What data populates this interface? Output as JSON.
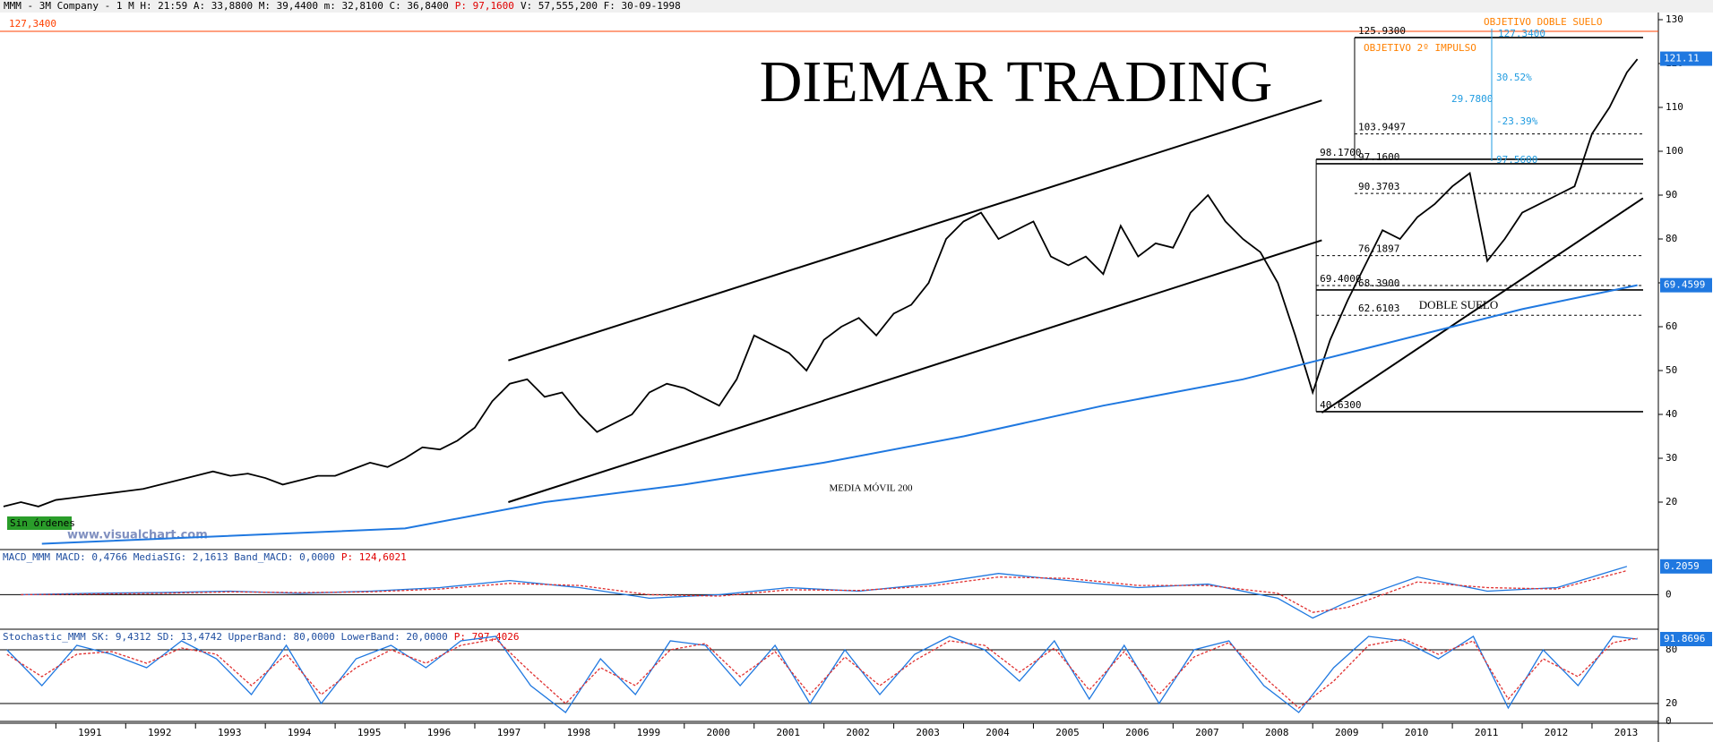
{
  "chart_data": {
    "type": "line",
    "header": "MMM - 3M Company -  1 M H: 21:59 A: 33,8800 M: 39,4400 m: 32,8100 C: 36,8400",
    "header_price": "P: 97,1600",
    "header_tail": "V: 57,555,200 F: 30-09-1998",
    "title": "DIEMAR TRADING",
    "watermark": "www.visualchart.com",
    "status": "Sin órdenes",
    "xlim": [
      1990.2,
      2013.95
    ],
    "xticks": [
      1991,
      1992,
      1993,
      1994,
      1995,
      1996,
      1997,
      1998,
      1999,
      2000,
      2001,
      2002,
      2003,
      2004,
      2005,
      2006,
      2007,
      2008,
      2009,
      2010,
      2011,
      2012,
      2013
    ],
    "ylim": [
      10,
      130
    ],
    "yticks": [
      20,
      30,
      40,
      50,
      60,
      70,
      80,
      90,
      100,
      110,
      120,
      130
    ],
    "series": [
      {
        "name": "MMM",
        "color": "#000000",
        "last_label": "121.11",
        "last_value": 121.11,
        "x": [
          1990.25,
          1990.5,
          1990.75,
          1991,
          1991.25,
          1991.5,
          1991.75,
          1992,
          1992.25,
          1992.5,
          1992.75,
          1993,
          1993.25,
          1993.5,
          1993.75,
          1994,
          1994.25,
          1994.5,
          1994.75,
          1995,
          1995.25,
          1995.5,
          1995.75,
          1996,
          1996.25,
          1996.5,
          1996.75,
          1997,
          1997.25,
          1997.5,
          1997.75,
          1998,
          1998.25,
          1998.5,
          1998.75,
          1999,
          1999.25,
          1999.5,
          1999.75,
          2000,
          2000.25,
          2000.5,
          2000.75,
          2001,
          2001.25,
          2001.5,
          2001.75,
          2002,
          2002.25,
          2002.5,
          2002.75,
          2003,
          2003.25,
          2003.5,
          2003.75,
          2004,
          2004.25,
          2004.5,
          2004.75,
          2005,
          2005.25,
          2005.5,
          2005.75,
          2006,
          2006.25,
          2006.5,
          2006.75,
          2007,
          2007.25,
          2007.5,
          2007.75,
          2008,
          2008.25,
          2008.5,
          2008.75,
          2009,
          2009.25,
          2009.5,
          2009.75,
          2010,
          2010.25,
          2010.5,
          2010.75,
          2011,
          2011.25,
          2011.5,
          2011.75,
          2012,
          2012.25,
          2012.5,
          2012.75,
          2013,
          2013.25,
          2013.5,
          2013.65
        ],
        "values": [
          19,
          20,
          19,
          20.5,
          21,
          21.5,
          22,
          22.5,
          23,
          24,
          25,
          26,
          27,
          26,
          26.5,
          25.5,
          24,
          25,
          26,
          26,
          27.5,
          29,
          28,
          30,
          32.5,
          32,
          34,
          37,
          43,
          47,
          48,
          44,
          45,
          40,
          36,
          38,
          40,
          45,
          47,
          46,
          44,
          42,
          48,
          58,
          56,
          54,
          50,
          57,
          60,
          62,
          58,
          63,
          65,
          70,
          80,
          84,
          86,
          80,
          82,
          84,
          76,
          74,
          76,
          72,
          83,
          76,
          79,
          78,
          86,
          90,
          84,
          80,
          77,
          70,
          58,
          45,
          57,
          66,
          74,
          82,
          80,
          85,
          88,
          92,
          95,
          75,
          80,
          86,
          88,
          90,
          92,
          104,
          110,
          118,
          121
        ]
      },
      {
        "name": "MEDIA MÓVIL 200",
        "color": "#1f78e0",
        "last_label": "69.4599",
        "last_value": 69.4599,
        "x": [
          1990.8,
          1996,
          1998,
          2000,
          2002,
          2004,
          2006,
          2008,
          2009,
          2010,
          2011,
          2012,
          2013.65
        ],
        "values": [
          10.5,
          14,
          20,
          24,
          29,
          35,
          42,
          48,
          52,
          56,
          60,
          64,
          69.4599
        ]
      }
    ],
    "resistance": {
      "value": 127.34,
      "label": "127,3400",
      "color": "#ff4000"
    },
    "levels": [
      {
        "value": 125.93,
        "label": "125.9300"
      },
      {
        "value": 103.9497,
        "label": "103.9497"
      },
      {
        "value": 98.17,
        "label": "98.1700"
      },
      {
        "value": 97.16,
        "label": "97.1600"
      },
      {
        "value": 90.3703,
        "label": "90.3703"
      },
      {
        "value": 76.1897,
        "label": "76.1897"
      },
      {
        "value": 69.4,
        "label": "69.4000"
      },
      {
        "value": 68.39,
        "label": "68.3900"
      },
      {
        "value": 62.6103,
        "label": "62.6103"
      },
      {
        "value": 40.63,
        "label": "40.6300"
      }
    ],
    "trend_lines": [
      {
        "x": [
          1997.48,
          2009.13
        ],
        "y": [
          52.3,
          111.6
        ]
      },
      {
        "x": [
          1997.48,
          2009.13
        ],
        "y": [
          20,
          79.7
        ]
      },
      {
        "x": [
          2009.13,
          2013.73
        ],
        "y": [
          40.4,
          89.3
        ]
      }
    ],
    "annotations": {
      "ma": "MEDIA MÓVIL 200",
      "double_bottom": "DOBLE SUELO",
      "target_double": "OBJETIVO DOBLE SUELO",
      "target_double_value": "127.3400",
      "target_impulse": "OBJETIVO 2º IMPULSO",
      "pct_up": "30.52%",
      "range": "29.7800",
      "pct_down": "-23.39%",
      "pct_mid": "97.5600"
    },
    "macd": {
      "header": "MACD_MMM MACD: 0,4766 MediaSIG: 2,1613 Band_MACD: 0,0000",
      "header_price": "P: 124,6021",
      "ylim": [
        -4.5,
        6
      ],
      "yticks": [
        0
      ],
      "last_label": "0.2059",
      "x": [
        1990.5,
        1991.5,
        1992.5,
        1993.5,
        1994.5,
        1995.5,
        1996.5,
        1997.5,
        1998.5,
        1999.5,
        2000.5,
        2001.5,
        2002.5,
        2003.5,
        2004.5,
        2005.5,
        2006.5,
        2007.5,
        2008.5,
        2009,
        2009.5,
        2010.5,
        2011.5,
        2012.5,
        2013.5
      ],
      "series": [
        {
          "name": "MACD",
          "color": "#1f78e0",
          "values": [
            0,
            0.2,
            0.3,
            0.5,
            0.2,
            0.5,
            1,
            2,
            1,
            -0.5,
            0,
            1,
            0.5,
            1.5,
            3,
            2,
            1,
            1.5,
            -0.5,
            -3.3,
            -1,
            2.5,
            0.5,
            1,
            4
          ]
        },
        {
          "name": "MediaSIG",
          "color": "#e03030",
          "values": [
            0,
            0.1,
            0.2,
            0.4,
            0.3,
            0.4,
            0.8,
            1.6,
            1.3,
            0,
            -0.2,
            0.7,
            0.6,
            1.2,
            2.5,
            2.3,
            1.3,
            1.3,
            0.2,
            -2.5,
            -1.8,
            1.8,
            1,
            0.8,
            3.4
          ]
        }
      ]
    },
    "stoch": {
      "header": "Stochastic_MMM SK: 9,4312 SD: 13,4742 UpperBand: 80,0000 LowerBand: 20,0000",
      "header_price": "P: 797,4026",
      "ylim": [
        0,
        100
      ],
      "yticks": [
        0,
        20,
        80
      ],
      "last_label": "91.8696",
      "x": [
        1990.3,
        1990.8,
        1991.3,
        1991.8,
        1992.3,
        1992.8,
        1993.3,
        1993.8,
        1994.3,
        1994.8,
        1995.3,
        1995.8,
        1996.3,
        1996.8,
        1997.3,
        1997.8,
        1998.3,
        1998.8,
        1999.3,
        1999.8,
        2000.3,
        2000.8,
        2001.3,
        2001.8,
        2002.3,
        2002.8,
        2003.3,
        2003.8,
        2004.3,
        2004.8,
        2005.3,
        2005.8,
        2006.3,
        2006.8,
        2007.3,
        2007.8,
        2008.3,
        2008.8,
        2009.3,
        2009.8,
        2010.3,
        2010.8,
        2011.3,
        2011.8,
        2012.3,
        2012.8,
        2013.3,
        2013.65
      ],
      "series": [
        {
          "name": "SK",
          "color": "#1f78e0",
          "values": [
            80,
            40,
            85,
            75,
            60,
            90,
            70,
            30,
            85,
            20,
            70,
            85,
            60,
            90,
            95,
            40,
            10,
            70,
            30,
            90,
            85,
            40,
            85,
            20,
            80,
            30,
            75,
            95,
            80,
            45,
            90,
            25,
            85,
            20,
            80,
            90,
            40,
            10,
            60,
            95,
            90,
            70,
            95,
            15,
            80,
            40,
            95,
            92
          ]
        },
        {
          "name": "SD",
          "color": "#e03030",
          "values": [
            75,
            50,
            75,
            78,
            65,
            82,
            75,
            40,
            75,
            30,
            60,
            80,
            65,
            85,
            92,
            55,
            20,
            60,
            40,
            80,
            87,
            50,
            78,
            30,
            72,
            40,
            68,
            90,
            85,
            55,
            82,
            35,
            78,
            30,
            72,
            88,
            50,
            15,
            45,
            85,
            92,
            75,
            90,
            25,
            70,
            50,
            88,
            93
          ]
        }
      ]
    }
  }
}
